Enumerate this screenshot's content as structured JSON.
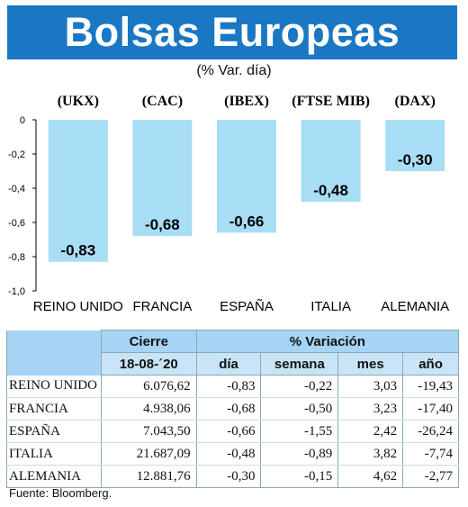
{
  "header": {
    "title": "Bolsas Europeas",
    "subtitle": "(% Var. día)"
  },
  "colors": {
    "header_bg": "#1a77c4",
    "bar": "#a8def5",
    "table_header": "#a6d4f5",
    "table_subheader": "#c9e4f8"
  },
  "chart_data": {
    "type": "bar",
    "title": "",
    "xlabel": "",
    "ylabel": "",
    "categories": [
      "REINO UNIDO",
      "FRANCIA",
      "ESPAÑA",
      "ITALIA",
      "ALEMANIA"
    ],
    "codes": [
      "(UKX)",
      "(CAC)",
      "(IBEX)",
      "(FTSE MIB)",
      "(DAX)"
    ],
    "values": [
      -0.83,
      -0.68,
      -0.66,
      -0.48,
      -0.3
    ],
    "value_labels": [
      "-0,83",
      "-0,68",
      "-0,66",
      "-0,48",
      "-0,30"
    ],
    "yticks": [
      0,
      -0.2,
      -0.4,
      -0.6,
      -0.8,
      -1.0
    ],
    "ytick_labels": [
      "0",
      "-0,2",
      "-0,4",
      "-0,6",
      "-0,8",
      "-1,0"
    ],
    "ylim": [
      -1.0,
      0
    ],
    "grid": false,
    "legend": "none"
  },
  "table": {
    "header_cierre": "Cierre",
    "header_variacion": "% Variación",
    "date": "18-08-´20",
    "col_dia": "día",
    "col_semana": "semana",
    "col_mes": "mes",
    "col_anio": "año",
    "rows": [
      {
        "country": "REINO UNIDO",
        "cierre": "6.076,62",
        "dia": "-0,83",
        "semana": "-0,22",
        "mes": "3,03",
        "anio": "-19,43"
      },
      {
        "country": "FRANCIA",
        "cierre": "4.938,06",
        "dia": "-0,68",
        "semana": "-0,50",
        "mes": "3,23",
        "anio": "-17,40"
      },
      {
        "country": "ESPAÑA",
        "cierre": "7.043,50",
        "dia": "-0,66",
        "semana": "-1,55",
        "mes": "2,42",
        "anio": "-26,24"
      },
      {
        "country": "ITALIA",
        "cierre": "21.687,09",
        "dia": "-0,48",
        "semana": "-0,89",
        "mes": "3,82",
        "anio": "-7,74"
      },
      {
        "country": "ALEMANIA",
        "cierre": "12.881,76",
        "dia": "-0,30",
        "semana": "-0,15",
        "mes": "4,62",
        "anio": "-2,77"
      }
    ]
  },
  "source": "Fuente: Bloomberg."
}
